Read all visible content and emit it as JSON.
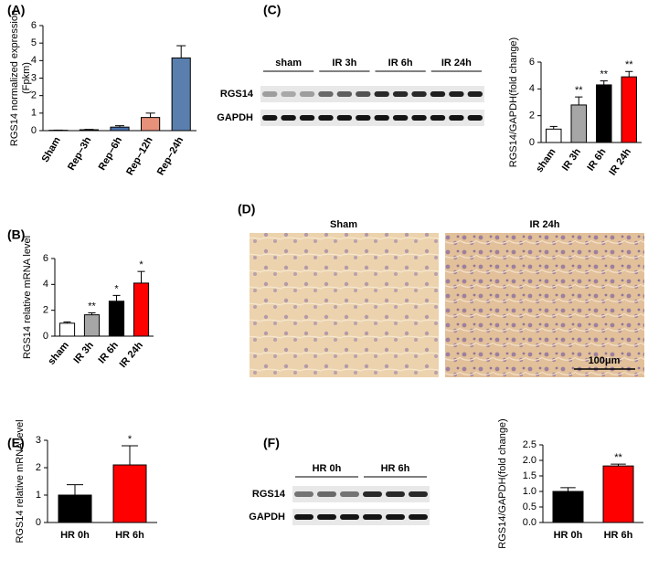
{
  "panel_labels": [
    "(A)",
    "(B)",
    "(C)",
    "(D)",
    "(E)",
    "(F)"
  ],
  "chart_data": [
    {
      "type": "bar",
      "y_label": [
        "RGS14 normalized expression",
        "(Fpkm)"
      ],
      "categories": [
        "Sham",
        "Rep−3h",
        "Rep−6h",
        "Rep−12h",
        "Rep−24h"
      ],
      "values": [
        0.02,
        0.05,
        0.2,
        0.75,
        4.15
      ],
      "errors": [
        0.01,
        0.02,
        0.08,
        0.25,
        0.7
      ],
      "colors": [
        "#333333",
        "#555555",
        "#4a6ea8",
        "#e8917a",
        "#5a7fae"
      ],
      "ylim": [
        0,
        6
      ],
      "yticks": [
        0,
        1,
        2,
        3,
        4,
        5,
        6
      ]
    },
    {
      "type": "bar",
      "y_label": [
        "RGS14 relative mRNA level"
      ],
      "categories": [
        "sham",
        "IR 3h",
        "IR 6h",
        "IR 24h"
      ],
      "values": [
        1.0,
        1.65,
        2.7,
        4.1
      ],
      "errors": [
        0.1,
        0.15,
        0.45,
        0.9
      ],
      "colors": [
        "#ffffff",
        "#a6a6a6",
        "#000000",
        "#ff0000"
      ],
      "significance": [
        null,
        "**",
        "*",
        "*"
      ],
      "ylim": [
        0,
        6
      ],
      "yticks": [
        0,
        2,
        4,
        6
      ]
    },
    {
      "type": "bar",
      "y_label": [
        "RGS14/GAPDH(fold change)"
      ],
      "categories": [
        "sham",
        "IR 3h",
        "IR 6h",
        "IR 24h"
      ],
      "values": [
        1.0,
        2.8,
        4.3,
        4.9
      ],
      "errors": [
        0.2,
        0.6,
        0.3,
        0.4
      ],
      "colors": [
        "#ffffff",
        "#a6a6a6",
        "#000000",
        "#ff0000"
      ],
      "significance": [
        null,
        "**",
        "**",
        "**"
      ],
      "ylim": [
        0,
        6
      ],
      "yticks": [
        0,
        2,
        4,
        6
      ]
    },
    {
      "type": "bar",
      "y_label": [
        "RGS14 relative mRNA level"
      ],
      "categories": [
        "HR 0h",
        "HR 6h"
      ],
      "values": [
        1.0,
        2.1
      ],
      "errors": [
        0.38,
        0.7
      ],
      "colors": [
        "#000000",
        "#ff0000"
      ],
      "significance": [
        null,
        "*"
      ],
      "ylim": [
        0,
        3
      ],
      "yticks": [
        0,
        1,
        2,
        3
      ]
    },
    {
      "type": "bar",
      "y_label": [
        "RGS14/GAPDH(fold change)"
      ],
      "categories": [
        "HR 0h",
        "HR 6h"
      ],
      "values": [
        1.0,
        1.82
      ],
      "errors": [
        0.12,
        0.06
      ],
      "colors": [
        "#000000",
        "#ff0000"
      ],
      "significance": [
        null,
        "**"
      ],
      "ylim": [
        0,
        2.5
      ],
      "yticks": [
        {
          "value": 0,
          "label": "0.0"
        },
        0.5,
        {
          "value": 1,
          "label": "1.0"
        },
        1.5,
        {
          "value": 2,
          "label": "2.0"
        },
        2.5
      ]
    }
  ],
  "blots": [
    {
      "groups": [
        "sham",
        "IR 3h",
        "IR 6h",
        "IR 24h"
      ],
      "rows": [
        "RGS14",
        "GAPDH"
      ]
    },
    {
      "groups": [
        "HR 0h",
        "HR 6h"
      ],
      "rows": [
        "RGS14",
        "GAPDH"
      ]
    }
  ],
  "histology": {
    "labels": [
      "Sham",
      "IR 24h"
    ],
    "scale_bar": "100μm"
  }
}
